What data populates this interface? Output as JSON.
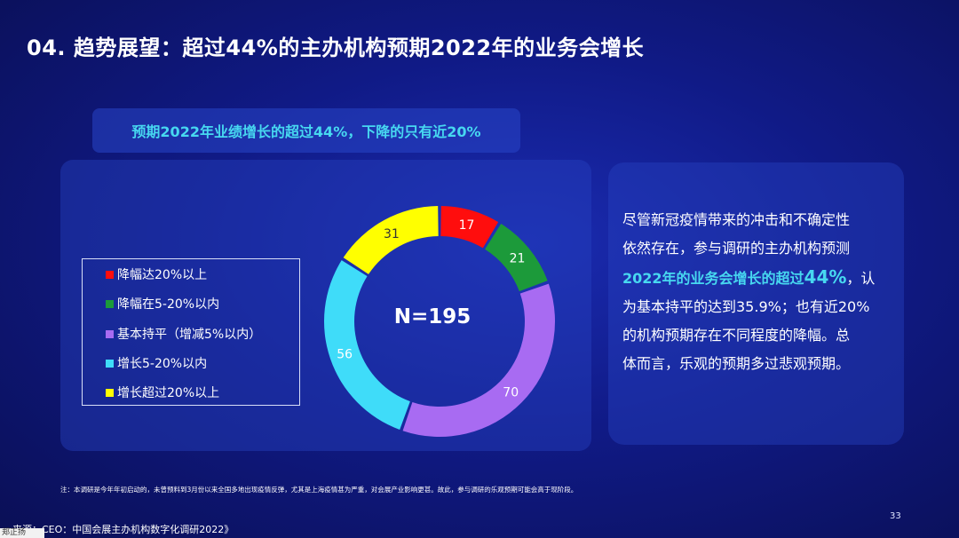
{
  "slide": {
    "title": "04. 趋势展望：超过44%的主办机构预期2022年的业务会增长",
    "highlight_caption": "预期2022年业绩增长的超过44%，下降的只有近20%",
    "paragraph": {
      "line1": "尽管新冠疫情带来的冲击和不确定性",
      "line2": "依然存在，参与调研的主办机构预测",
      "hl_text": "2022年的业务会增长的超过",
      "hl_big": "44%",
      "after_hl": "，认",
      "line4": "为基本持平的达到35.9%；也有近20%",
      "line5": "的机构预期存在不同程度的降幅。总",
      "line6": "体而言，乐观的预期多过悲观预期。"
    },
    "footnote": "注：本调研是今年年初启动的，未曾预料到3月份以来全国多地出现疫情反弹，尤其是上海疫情甚为严重，对会展产业影响更甚。故此，参与调研的乐观预期可能会高于现阶段。",
    "source": "来源：CEO：中国会展主办机构数字化调研2022》",
    "page_number": "33",
    "corner_tag": "郑正扬"
  },
  "chart_data": {
    "type": "pie",
    "variant": "donut",
    "center_label": "N=195",
    "categories": [
      "降幅达20%以上",
      "降幅在5-20%以内",
      "基本持平（增减5%以内）",
      "增长5-20%以内",
      "增长超过20%以上"
    ],
    "values": [
      17,
      21,
      70,
      56,
      31
    ],
    "colors": [
      "#ff0d0d",
      "#1c9a3a",
      "#a86bf2",
      "#3fdcf9",
      "#ffff00"
    ],
    "label_colors": [
      "#ffffff",
      "#ffffff",
      "#ffffff",
      "#ffffff",
      "#333333"
    ],
    "legend_position": "left"
  }
}
